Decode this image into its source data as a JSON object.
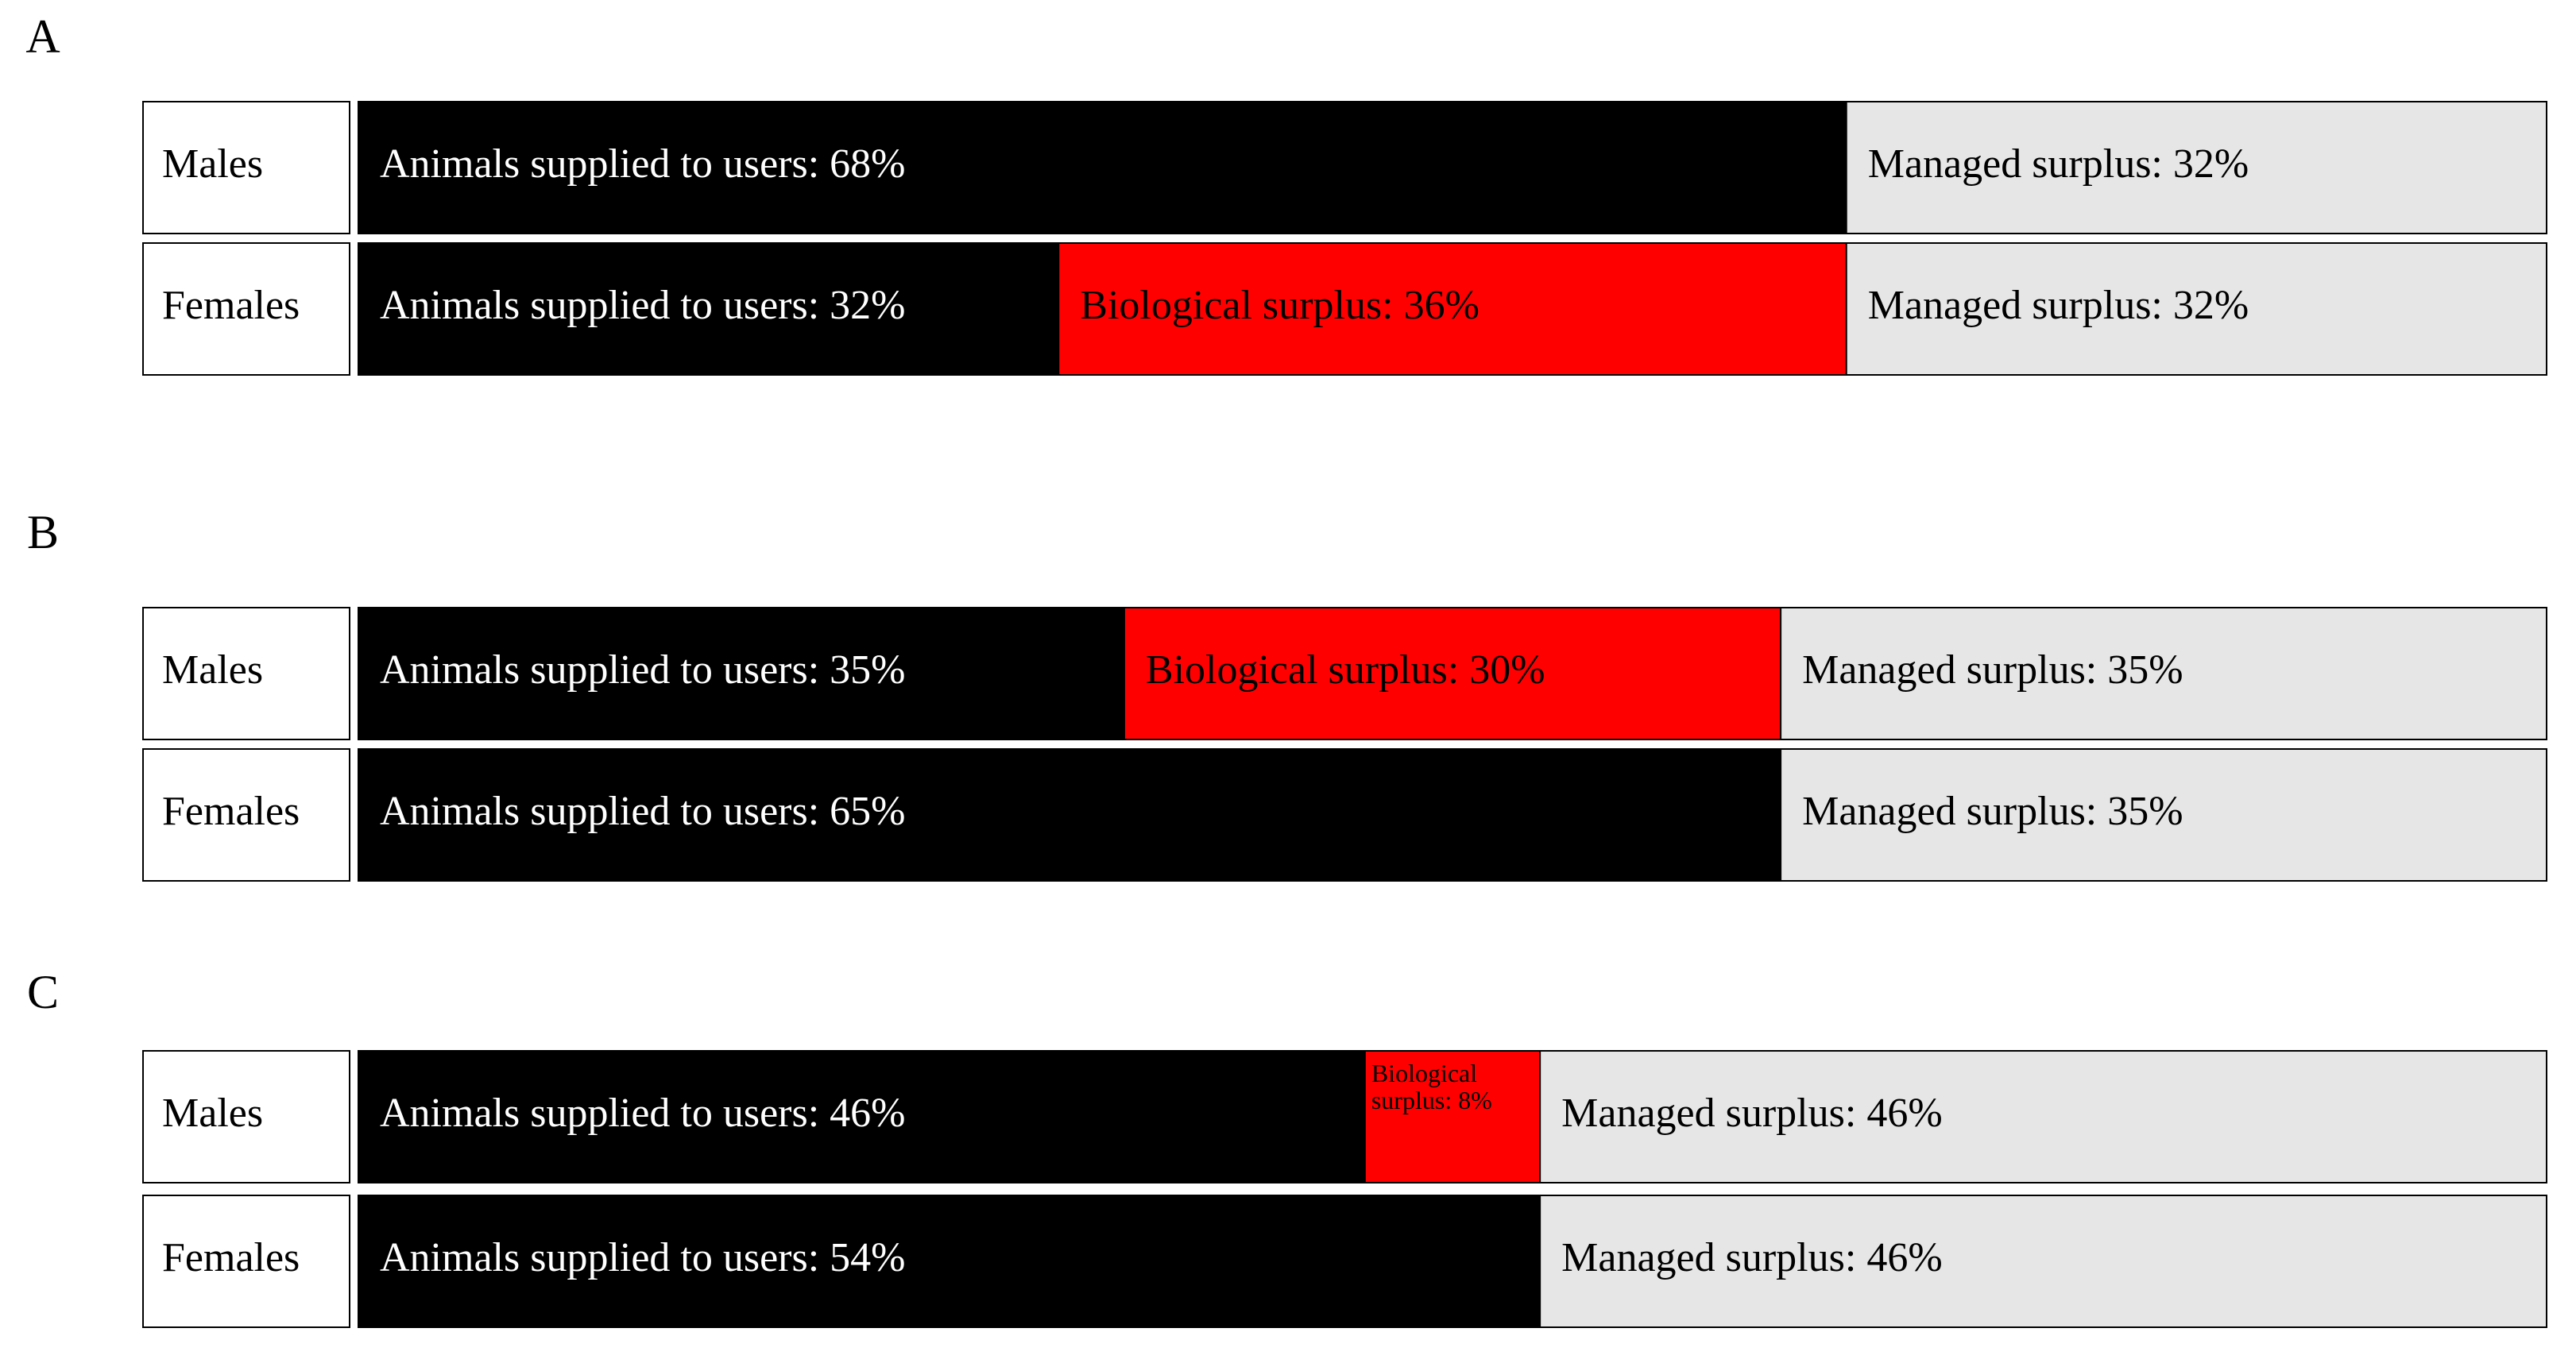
{
  "chart_data": [
    {
      "type": "bar",
      "orientation": "horizontal",
      "stacked": true,
      "title": "A",
      "categories": [
        "Males",
        "Females"
      ],
      "xlim": [
        0,
        100
      ],
      "series": [
        {
          "color": "#000000",
          "values": [
            68,
            32
          ],
          "value_labels": [
            "Animals supplied to users: 68%",
            "Animals supplied to users: 32%"
          ]
        },
        {
          "color": "#ff0000",
          "values": [
            null,
            36
          ],
          "value_labels": [
            null,
            "Biological surplus: 36%"
          ]
        },
        {
          "color": "#e6e6e6",
          "values": [
            32,
            32
          ],
          "value_labels": [
            "Managed surplus: 32%",
            "Managed surplus: 32%"
          ]
        }
      ]
    },
    {
      "type": "bar",
      "orientation": "horizontal",
      "stacked": true,
      "title": "B",
      "categories": [
        "Males",
        "Females"
      ],
      "xlim": [
        0,
        100
      ],
      "series": [
        {
          "color": "#000000",
          "values": [
            35,
            65
          ],
          "value_labels": [
            "Animals supplied to users: 35%",
            "Animals supplied to users: 65%"
          ]
        },
        {
          "color": "#ff0000",
          "values": [
            30,
            null
          ],
          "value_labels": [
            "Biological surplus: 30%",
            null
          ]
        },
        {
          "color": "#e6e6e6",
          "values": [
            35,
            35
          ],
          "value_labels": [
            "Managed surplus: 35%",
            "Managed surplus: 35%"
          ]
        }
      ]
    },
    {
      "type": "bar",
      "orientation": "horizontal",
      "stacked": true,
      "title": "C",
      "categories": [
        "Males",
        "Females"
      ],
      "xlim": [
        0,
        100
      ],
      "series": [
        {
          "color": "#000000",
          "values": [
            46,
            54
          ],
          "value_labels": [
            "Animals supplied to users: 46%",
            "Animals supplied to users: 54%"
          ]
        },
        {
          "color": "#ff0000",
          "values": [
            8,
            null
          ],
          "value_labels": [
            "Biological surplus: 8%",
            null
          ]
        },
        {
          "color": "#e6e6e6",
          "values": [
            46,
            46
          ],
          "value_labels": [
            "Managed surplus: 46%",
            "Managed surplus: 46%"
          ]
        }
      ]
    }
  ]
}
